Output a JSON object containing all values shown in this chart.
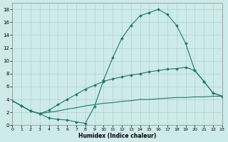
{
  "xlabel": "Humidex (Indice chaleur)",
  "line_color": "#1a7a6e",
  "marker": "D",
  "marker_size": 2.0,
  "background_color": "#ceeaea",
  "grid_color": "#a8cccc",
  "xlim": [
    0,
    23
  ],
  "ylim": [
    0,
    19
  ],
  "xticks": [
    0,
    1,
    2,
    3,
    4,
    5,
    6,
    7,
    8,
    9,
    10,
    11,
    12,
    13,
    14,
    15,
    16,
    17,
    18,
    19,
    20,
    21,
    22,
    23
  ],
  "yticks": [
    0,
    2,
    4,
    6,
    8,
    10,
    12,
    14,
    16,
    18
  ],
  "curve1_x": [
    0,
    1,
    2,
    3,
    4,
    5,
    6,
    7,
    8,
    9,
    10,
    11,
    12,
    13,
    14,
    15,
    16,
    17,
    18,
    19,
    20,
    21,
    22,
    23
  ],
  "curve1_y": [
    3.8,
    3.0,
    2.2,
    1.8,
    1.1,
    0.9,
    0.8,
    0.5,
    0.3,
    2.9,
    7.0,
    10.5,
    13.5,
    15.5,
    17.0,
    17.5,
    18.0,
    17.2,
    15.5,
    12.7,
    8.5,
    6.8,
    5.0,
    4.5
  ],
  "curve2_x": [
    0,
    1,
    2,
    3,
    4,
    5,
    6,
    7,
    8,
    9,
    10,
    11,
    12,
    13,
    14,
    15,
    16,
    17,
    18,
    19,
    20,
    21,
    22,
    23
  ],
  "curve2_y": [
    3.8,
    3.0,
    2.2,
    1.8,
    2.3,
    3.2,
    4.0,
    4.8,
    5.6,
    6.2,
    6.8,
    7.2,
    7.5,
    7.8,
    8.0,
    8.3,
    8.5,
    8.7,
    8.8,
    9.0,
    8.5,
    6.8,
    5.0,
    4.5
  ],
  "curve3_x": [
    0,
    1,
    2,
    3,
    4,
    5,
    6,
    7,
    8,
    9,
    10,
    11,
    12,
    13,
    14,
    15,
    16,
    17,
    18,
    19,
    20,
    21,
    22,
    23
  ],
  "curve3_y": [
    3.8,
    3.0,
    2.2,
    1.8,
    2.0,
    2.2,
    2.5,
    2.7,
    3.0,
    3.2,
    3.4,
    3.5,
    3.7,
    3.8,
    4.0,
    4.0,
    4.1,
    4.2,
    4.3,
    4.3,
    4.4,
    4.4,
    4.5,
    4.5
  ]
}
